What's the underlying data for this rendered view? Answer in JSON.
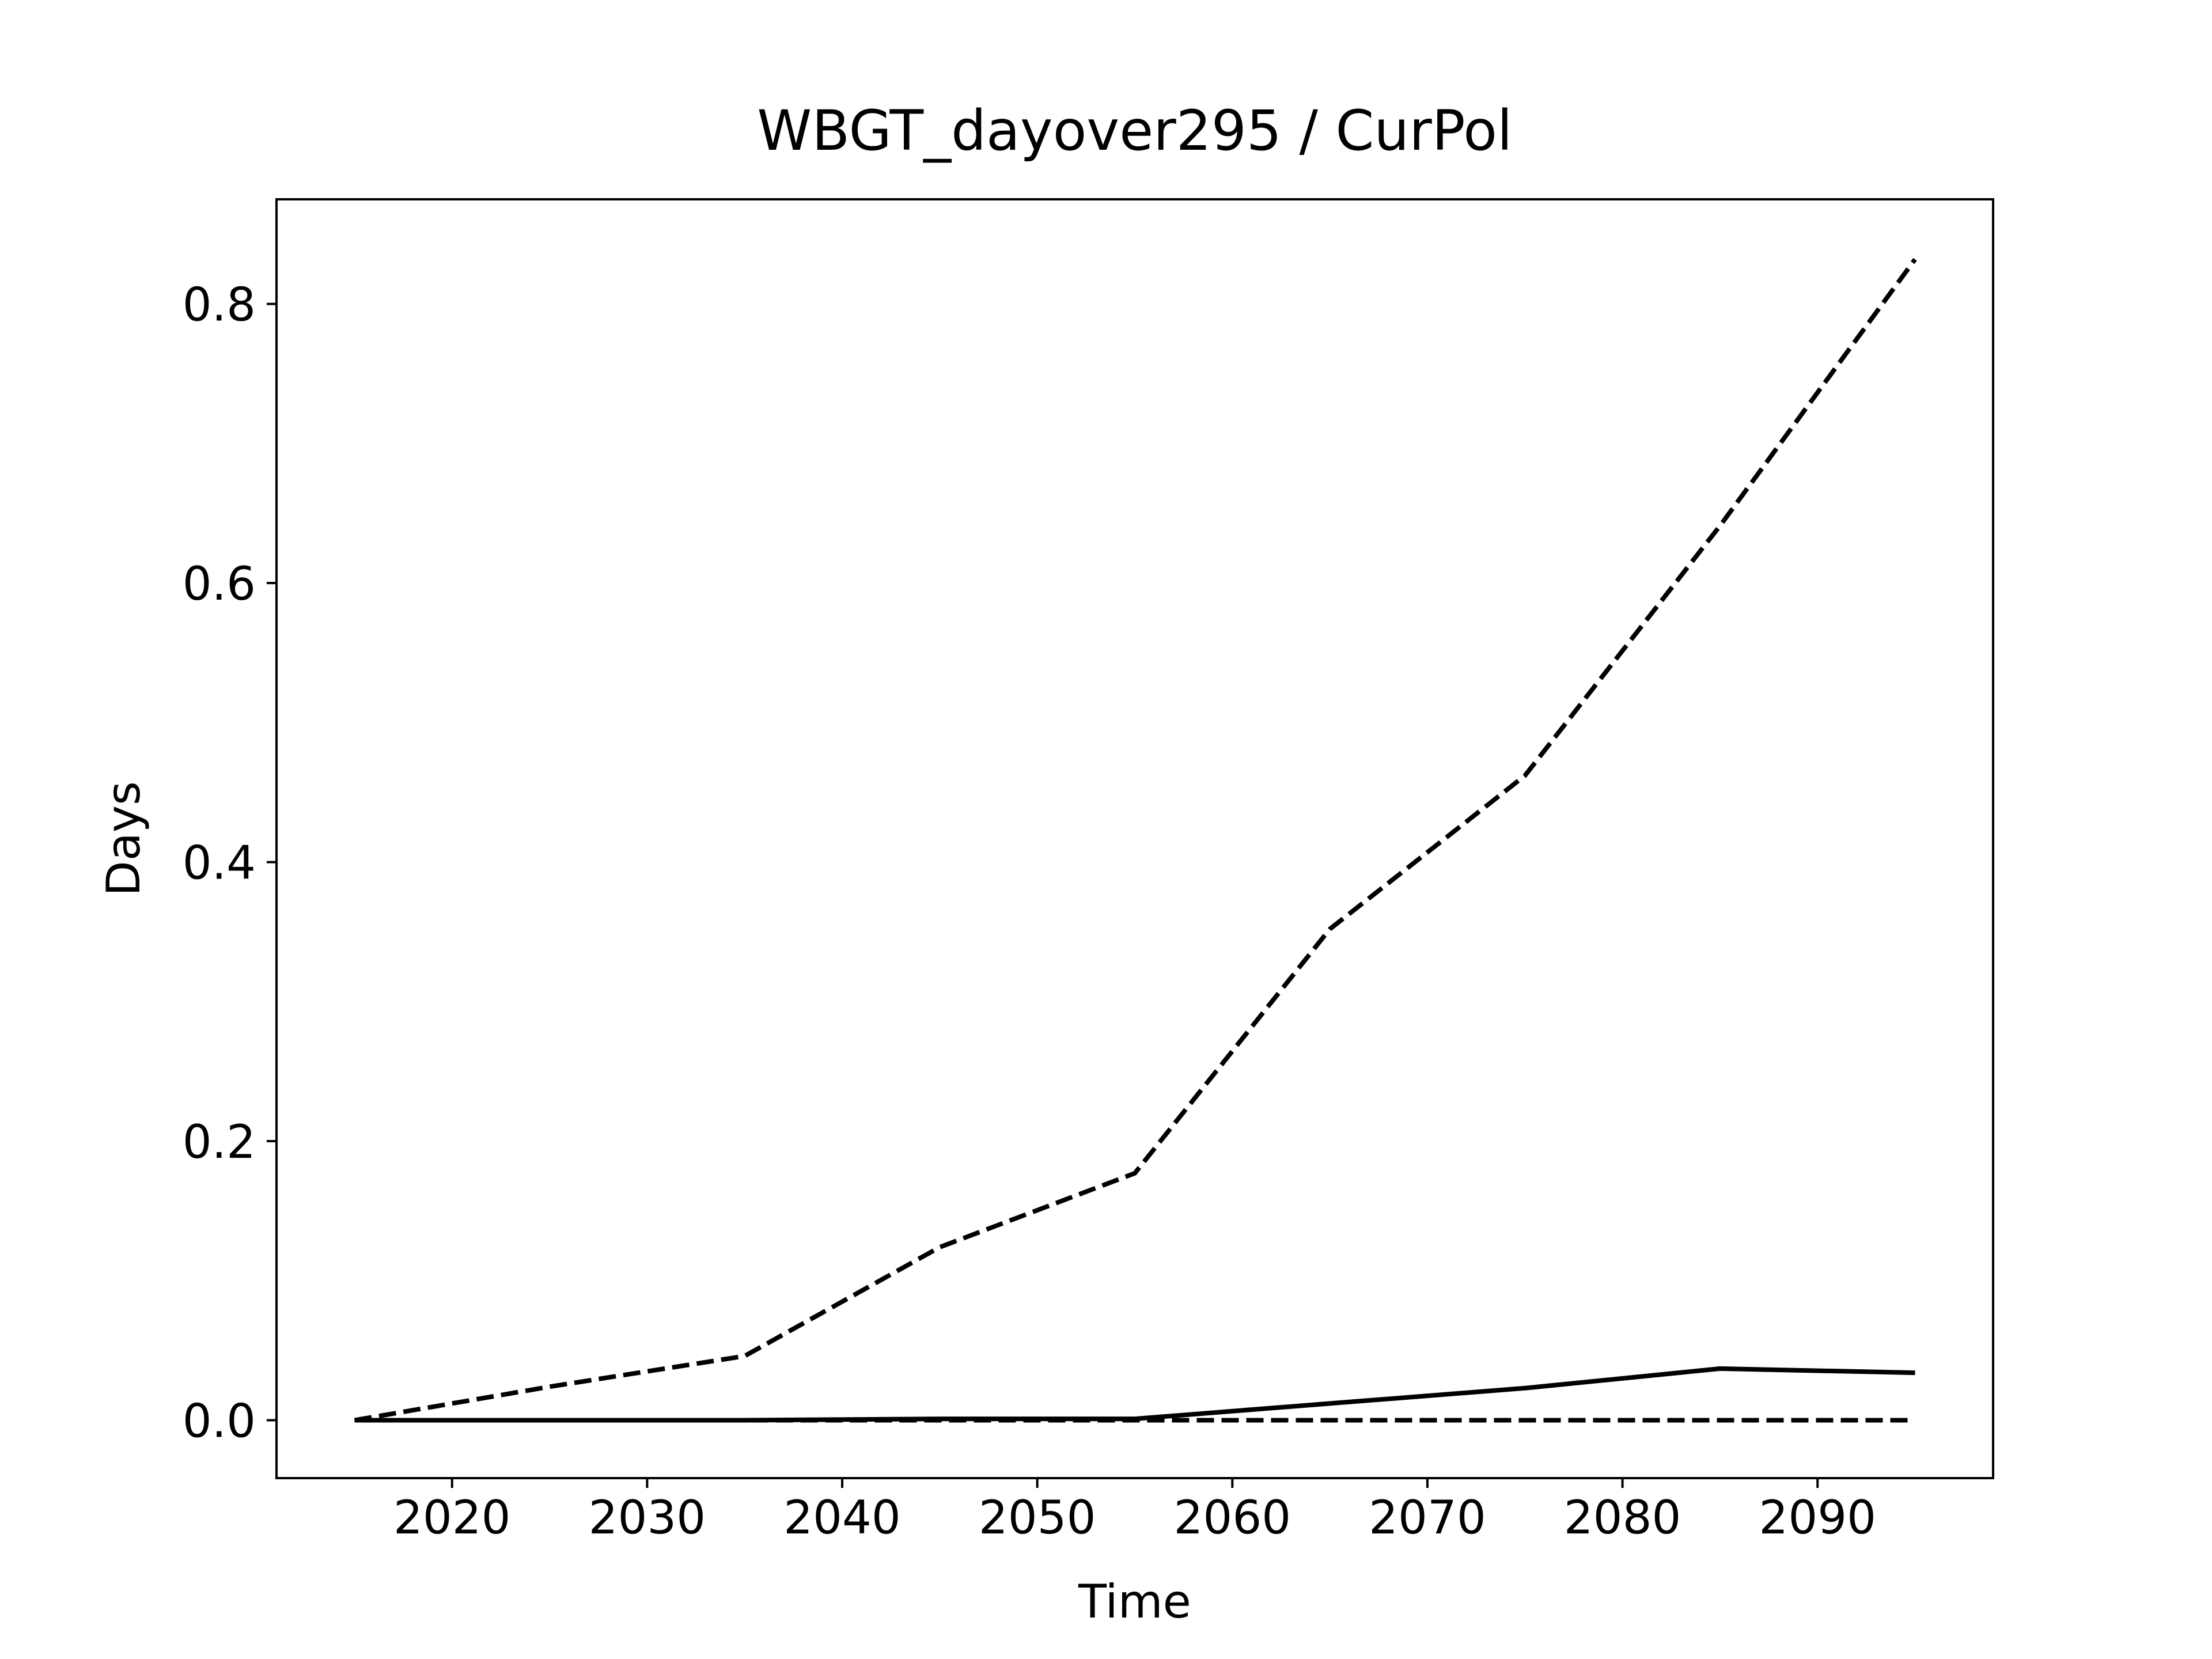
{
  "chart_data": {
    "type": "line",
    "title": "WBGT_dayover295 / CurPol",
    "xlabel": "Time",
    "ylabel": "Days",
    "xlim": [
      2011,
      2099
    ],
    "ylim": [
      -0.0415,
      0.875
    ],
    "x_ticks": [
      "2020",
      "2030",
      "2040",
      "2050",
      "2060",
      "2070",
      "2080",
      "2090"
    ],
    "y_ticks": [
      "0.0",
      "0.2",
      "0.4",
      "0.6",
      "0.8"
    ],
    "grid": false,
    "legend": "none",
    "x": [
      2015,
      2025,
      2035,
      2045,
      2055,
      2065,
      2075,
      2085,
      2095
    ],
    "series": [
      {
        "style": "dashed",
        "color": "#000000",
        "values": [
          0.0,
          0.024,
          0.046,
          0.124,
          0.177,
          0.352,
          0.462,
          0.641,
          0.832
        ]
      },
      {
        "style": "solid",
        "color": "#000000",
        "values": [
          0.0,
          0.0,
          0.0,
          0.001,
          0.001,
          0.012,
          0.023,
          0.037,
          0.034
        ]
      },
      {
        "style": "dashed",
        "color": "#000000",
        "values": [
          0.0,
          0.0,
          0.0,
          0.0,
          0.0,
          0.0,
          0.0,
          0.0,
          0.0
        ]
      }
    ]
  }
}
